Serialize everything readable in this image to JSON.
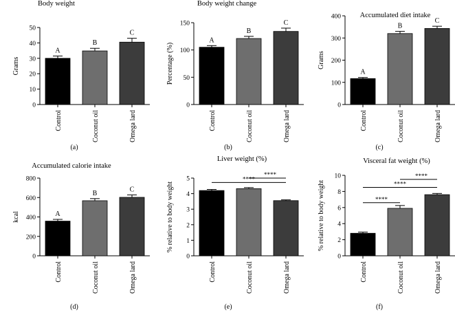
{
  "chart_data": [
    {
      "type": "bar",
      "panel": "(a)",
      "title": "Body weight",
      "ylabel": "Grams",
      "categories": [
        "Control",
        "Coconut oil",
        "Omega lard"
      ],
      "values": [
        30,
        34.8,
        40.5
      ],
      "errors": [
        1.5,
        1.7,
        2.5
      ],
      "letters": [
        "A",
        "B",
        "C"
      ],
      "ylim": [
        0,
        50
      ],
      "yticks": [
        0,
        10,
        20,
        30,
        40,
        50
      ],
      "colors": [
        "#000000",
        "#6e6e6e",
        "#3c3c3c"
      ],
      "brackets": []
    },
    {
      "type": "bar",
      "panel": "(b)",
      "title": "Body weight change",
      "ylabel": "Percentage (%)",
      "categories": [
        "Control",
        "Coconut oil",
        "Omega lard"
      ],
      "values": [
        105,
        121,
        134
      ],
      "errors": [
        3,
        4,
        6
      ],
      "letters": [
        "A",
        "B",
        "C"
      ],
      "ylim": [
        0,
        150
      ],
      "yticks": [
        0,
        50,
        100,
        150
      ],
      "colors": [
        "#000000",
        "#6e6e6e",
        "#3c3c3c"
      ],
      "brackets": []
    },
    {
      "type": "bar",
      "panel": "(c)",
      "title": "Accumulated diet intake",
      "ylabel": "Grams",
      "categories": [
        "Control",
        "Coconut oil",
        "Omega lard"
      ],
      "values": [
        117,
        320,
        343
      ],
      "errors": [
        5,
        10,
        10
      ],
      "letters": [
        "A",
        "B",
        "C"
      ],
      "ylim": [
        0,
        400
      ],
      "yticks": [
        0,
        100,
        200,
        300,
        400
      ],
      "colors": [
        "#000000",
        "#6e6e6e",
        "#3c3c3c"
      ],
      "brackets": []
    },
    {
      "type": "bar",
      "panel": "(d)",
      "title": "Accumulated calorie intake",
      "ylabel": "kcal",
      "categories": [
        "Control",
        "Coconut oil",
        "Omega lard"
      ],
      "values": [
        357,
        567,
        602
      ],
      "errors": [
        18,
        22,
        25
      ],
      "letters": [
        "A",
        "B",
        "C"
      ],
      "ylim": [
        0,
        800
      ],
      "yticks": [
        0,
        200,
        400,
        600,
        800
      ],
      "colors": [
        "#000000",
        "#6e6e6e",
        "#3c3c3c"
      ],
      "brackets": []
    },
    {
      "type": "bar",
      "panel": "(e)",
      "title": "Liver weight (%)",
      "ylabel": "% relative to body weight",
      "categories": [
        "Control",
        "Coconut oil",
        "Omega lard"
      ],
      "values": [
        4.2,
        4.32,
        3.55
      ],
      "errors": [
        0.07,
        0.07,
        0.05
      ],
      "letters": [
        "",
        "",
        ""
      ],
      "ylim": [
        0,
        5
      ],
      "yticks": [
        0,
        1,
        2,
        3,
        4,
        5
      ],
      "colors": [
        "#000000",
        "#6e6e6e",
        "#3c3c3c"
      ],
      "brackets": [
        {
          "from": 0,
          "to": 2,
          "y": 4.72,
          "label": "****"
        },
        {
          "from": 1,
          "to": 2,
          "y": 5.0,
          "label": "****"
        }
      ]
    },
    {
      "type": "bar",
      "panel": "(f)",
      "title": "Visceral fat weight (%)",
      "ylabel": "% relative to body weight",
      "categories": [
        "Control",
        "Coconut oil",
        "Omega lard"
      ],
      "values": [
        2.8,
        5.9,
        7.6
      ],
      "errors": [
        0.15,
        0.35,
        0.15
      ],
      "letters": [
        "",
        "",
        ""
      ],
      "ylim": [
        0,
        10
      ],
      "yticks": [
        0,
        2,
        4,
        6,
        8,
        10
      ],
      "colors": [
        "#000000",
        "#6e6e6e",
        "#3c3c3c"
      ],
      "brackets": [
        {
          "from": 0,
          "to": 1,
          "y": 6.6,
          "label": "****"
        },
        {
          "from": 0,
          "to": 2,
          "y": 8.5,
          "label": "****"
        },
        {
          "from": 1,
          "to": 2,
          "y": 9.5,
          "label": "****"
        }
      ]
    }
  ]
}
